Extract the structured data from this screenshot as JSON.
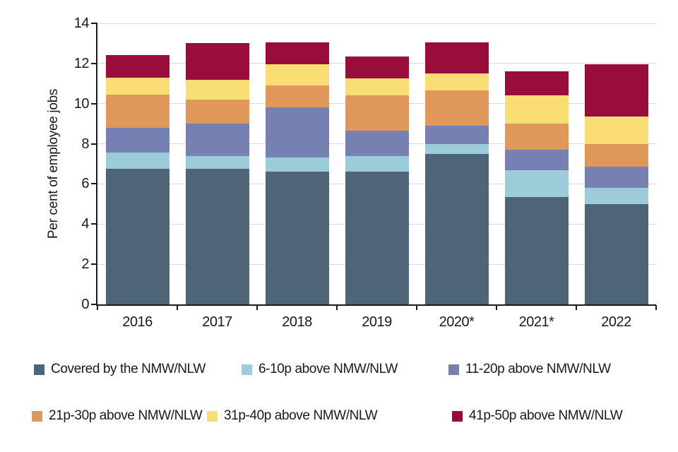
{
  "chart_data": {
    "type": "bar",
    "stacked": true,
    "title": "",
    "xlabel": "",
    "ylabel": "Per cent of employee jobs",
    "ylim": [
      0,
      14
    ],
    "ytick_step": 2,
    "grid": true,
    "legend_position": "bottom",
    "categories": [
      "2016",
      "2017",
      "2018",
      "2019",
      "2020*",
      "2021*",
      "2022"
    ],
    "series": [
      {
        "name": "Covered by the NMW/NLW",
        "color": "#4e6577",
        "values": [
          6.75,
          6.75,
          6.6,
          6.6,
          7.5,
          5.35,
          5.0
        ]
      },
      {
        "name": "6-10p above NMW/NLW",
        "color": "#9ccbda",
        "values": [
          0.8,
          0.65,
          0.7,
          0.8,
          0.5,
          1.35,
          0.8
        ]
      },
      {
        "name": "11-20p above NMW/NLW",
        "color": "#7780b3",
        "values": [
          1.25,
          1.6,
          2.5,
          1.25,
          0.9,
          1.0,
          1.05
        ]
      },
      {
        "name": "21p-30p above NMW/NLW",
        "color": "#e0985a",
        "values": [
          1.65,
          1.2,
          1.1,
          1.75,
          1.75,
          1.3,
          1.15
        ]
      },
      {
        "name": "31p-40p above NMW/NLW",
        "color": "#f9de76",
        "values": [
          0.85,
          1.0,
          1.05,
          0.85,
          0.85,
          1.4,
          1.35
        ]
      },
      {
        "name": "41p-50p above NMW/NLW",
        "color": "#990d3b",
        "values": [
          1.1,
          1.8,
          1.1,
          1.1,
          1.55,
          1.2,
          2.6
        ]
      }
    ],
    "stack_totals": [
      12.4,
      13.0,
      13.05,
      12.35,
      13.05,
      11.6,
      11.95
    ],
    "colors": {
      "axis": "#1a1a1a",
      "gridline": "#d9d9d9",
      "background": "#ffffff"
    }
  }
}
